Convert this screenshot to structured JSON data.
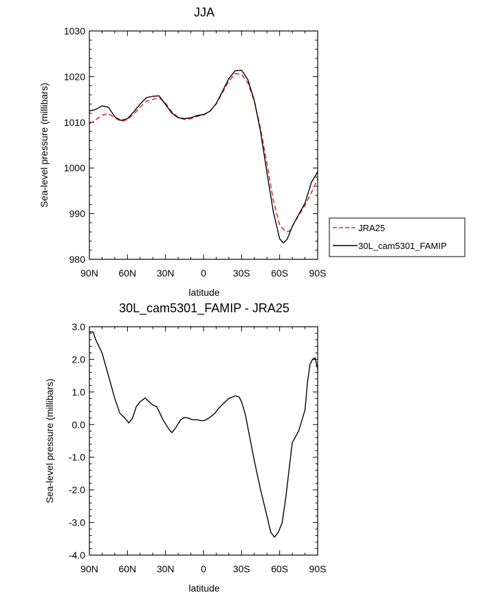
{
  "chart_data": [
    {
      "type": "line",
      "title": "JJA",
      "xlabel": "latitude",
      "ylabel": "Sea-level pressure (millibars)",
      "xlim": [
        90,
        -90
      ],
      "ylim": [
        980,
        1030
      ],
      "xticks": [
        90,
        60,
        30,
        0,
        -30,
        -60,
        -90
      ],
      "xtick_labels": [
        "90N",
        "60N",
        "30N",
        "0",
        "30S",
        "60S",
        "90S"
      ],
      "yticks": [
        980,
        990,
        1000,
        1010,
        1020,
        1030
      ],
      "ytick_labels": [
        "980",
        "990",
        "1000",
        "1010",
        "1020",
        "1030"
      ],
      "grid": false,
      "legend_position": "outside-right",
      "series": [
        {
          "name": "JRA25",
          "color": "#e8282b",
          "dash": "dashed",
          "x": [
            90,
            85,
            80,
            75,
            70,
            65,
            60,
            55,
            50,
            45,
            40,
            35,
            30,
            25,
            20,
            15,
            10,
            5,
            0,
            -5,
            -10,
            -15,
            -20,
            -25,
            -30,
            -35,
            -40,
            -45,
            -50,
            -55,
            -60,
            -65,
            -68,
            -70,
            -75,
            -80,
            -85,
            -90
          ],
          "y": [
            1009.7,
            1010.5,
            1011.6,
            1011.9,
            1011.0,
            1010.2,
            1010.6,
            1011.8,
            1013.3,
            1014.6,
            1015.0,
            1015.4,
            1014.2,
            1012.3,
            1011.1,
            1010.6,
            1010.8,
            1011.3,
            1011.6,
            1012.4,
            1014.0,
            1016.5,
            1019.0,
            1020.7,
            1020.5,
            1018.6,
            1014.6,
            1008.6,
            1001.0,
            993.0,
            987.5,
            986.0,
            986.2,
            987.2,
            989.6,
            991.8,
            994.6,
            997.6
          ]
        },
        {
          "name": "30L_cam5301_FAMIP",
          "color": "#000000",
          "dash": "solid",
          "x": [
            90,
            85,
            80,
            75,
            70,
            65,
            60,
            55,
            50,
            45,
            40,
            35,
            30,
            25,
            20,
            15,
            10,
            5,
            0,
            -5,
            -10,
            -15,
            -20,
            -25,
            -30,
            -35,
            -40,
            -45,
            -50,
            -55,
            -60,
            -63,
            -66,
            -70,
            -75,
            -80,
            -85,
            -90
          ],
          "y": [
            1012.5,
            1012.8,
            1013.6,
            1013.3,
            1011.2,
            1010.4,
            1010.8,
            1012.3,
            1014.0,
            1015.4,
            1015.7,
            1015.8,
            1013.9,
            1012.0,
            1011.0,
            1010.8,
            1011.0,
            1011.5,
            1011.7,
            1012.4,
            1014.1,
            1016.8,
            1019.6,
            1021.3,
            1021.4,
            1019.3,
            1014.8,
            1007.9,
            999.0,
            990.5,
            984.5,
            983.6,
            984.4,
            987.2,
            989.8,
            992.3,
            996.8,
            999.2
          ]
        }
      ]
    },
    {
      "type": "line",
      "title": "30L_cam5301_FAMIP - JRA25",
      "xlabel": "latitude",
      "ylabel": "Sea-level pressure (millibars)",
      "xlim": [
        90,
        -90
      ],
      "ylim": [
        -4.0,
        3.0
      ],
      "xticks": [
        90,
        60,
        30,
        0,
        -30,
        -60,
        -90
      ],
      "xtick_labels": [
        "90N",
        "60N",
        "30N",
        "0",
        "30S",
        "60S",
        "90S"
      ],
      "yticks": [
        -4.0,
        -3.0,
        -2.0,
        -1.0,
        0.0,
        1.0,
        2.0,
        3.0
      ],
      "ytick_labels": [
        "-4.0",
        "-3.0",
        "-2.0",
        "-1.0",
        "0.0",
        "1.0",
        "2.0",
        "3.0"
      ],
      "grid": false,
      "series": [
        {
          "color": "#000000",
          "dash": "solid",
          "x": [
            90,
            87,
            85,
            80,
            75,
            70,
            66,
            62,
            59,
            56,
            53,
            50,
            46,
            43,
            40,
            37,
            35,
            32,
            28,
            25,
            22,
            18,
            15,
            12,
            9,
            5,
            2,
            0,
            -2,
            -5,
            -9,
            -12,
            -15,
            -20,
            -25,
            -28,
            -30,
            -33,
            -36,
            -40,
            -45,
            -50,
            -53,
            -56,
            -59,
            -62,
            -65,
            -68,
            -70,
            -75,
            -80,
            -82,
            -84,
            -86,
            -88,
            -90
          ],
          "y": [
            2.84,
            2.84,
            2.6,
            2.2,
            1.5,
            0.8,
            0.35,
            0.2,
            0.05,
            0.2,
            0.55,
            0.7,
            0.82,
            0.7,
            0.6,
            0.55,
            0.4,
            0.15,
            -0.1,
            -0.25,
            -0.1,
            0.15,
            0.22,
            0.2,
            0.15,
            0.15,
            0.12,
            0.12,
            0.15,
            0.22,
            0.35,
            0.5,
            0.62,
            0.8,
            0.88,
            0.85,
            0.7,
            0.3,
            -0.3,
            -1.1,
            -2.0,
            -2.8,
            -3.3,
            -3.45,
            -3.3,
            -3.0,
            -2.2,
            -1.2,
            -0.55,
            -0.2,
            0.45,
            1.3,
            1.85,
            2.0,
            2.05,
            1.7
          ]
        }
      ]
    }
  ]
}
